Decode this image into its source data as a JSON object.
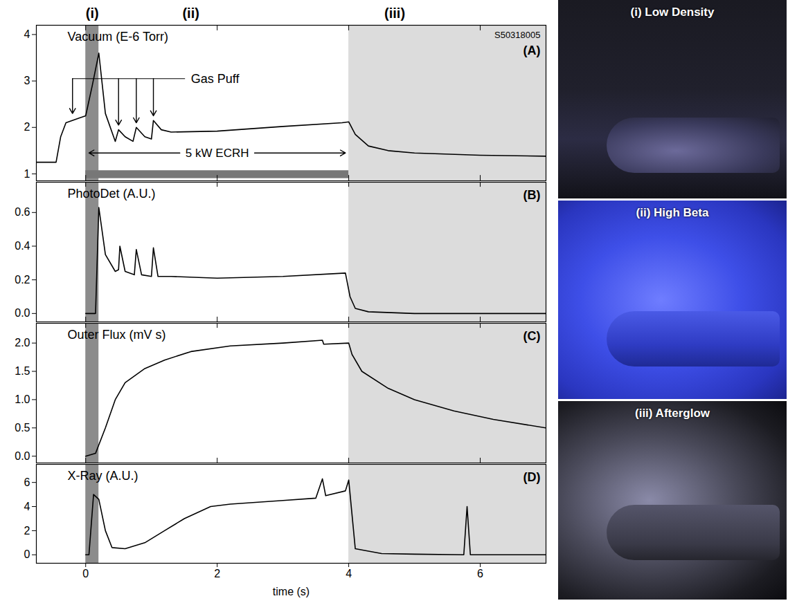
{
  "chart_data": [
    {
      "type": "line",
      "title": "Vacuum (E-6 Torr)",
      "panel_label": "(A)",
      "sample_id": "S50318005",
      "color": "#000000",
      "xlim": [
        -0.75,
        7
      ],
      "xticks": [
        0,
        2,
        4,
        6
      ],
      "ylim": [
        0.85,
        4.2
      ],
      "yticks": [
        1,
        2,
        3,
        4
      ],
      "tick_labels": "y",
      "x": [
        -0.75,
        -0.45,
        -0.38,
        -0.3,
        -0.1,
        0.0,
        0.1,
        0.2,
        0.3,
        0.45,
        0.5,
        0.6,
        0.72,
        0.77,
        0.9,
        1.0,
        1.03,
        1.15,
        1.3,
        2.0,
        3.0,
        3.9,
        4.0,
        4.1,
        4.3,
        4.6,
        5.0,
        6.0,
        7.0
      ],
      "values": [
        1.25,
        1.25,
        1.8,
        2.1,
        2.2,
        2.25,
        2.9,
        3.6,
        2.3,
        1.7,
        1.95,
        1.8,
        1.7,
        2.0,
        1.8,
        1.75,
        2.15,
        1.95,
        1.9,
        1.92,
        2.02,
        2.1,
        2.12,
        1.85,
        1.6,
        1.5,
        1.45,
        1.4,
        1.38
      ],
      "regions": [
        {
          "x1": 0,
          "x2": 0.2,
          "color": "#8c8c8c"
        },
        {
          "x1": 4,
          "x2": 7,
          "color": "#dcdcdc"
        }
      ],
      "phase_labels": [
        {
          "label": "(i)",
          "x": 0.1
        },
        {
          "label": "(ii)",
          "x": 1.6
        },
        {
          "label": "(iii)",
          "x": 4.7
        }
      ],
      "gas_puff": {
        "label": "Gas Puff",
        "y": 3.05,
        "label_x": 1.6,
        "arrows": [
          {
            "x": -0.2,
            "y": 2.3
          },
          {
            "x": 0.5,
            "y": 2.05
          },
          {
            "x": 0.77,
            "y": 2.1
          },
          {
            "x": 1.03,
            "y": 2.25
          }
        ]
      },
      "ecrh": {
        "label": "5 kW ECRH",
        "x1": 0.05,
        "x2": 3.95,
        "y": 1.45,
        "bar": {
          "x1": 0,
          "x2": 4,
          "y1": 0.9,
          "y2": 1.07,
          "color": "#777777"
        }
      }
    },
    {
      "type": "line",
      "title": "PhotoDet (A.U.)",
      "panel_label": "(B)",
      "color": "#000000",
      "xlim": [
        -0.75,
        7
      ],
      "xticks": [
        0,
        2,
        4,
        6
      ],
      "ylim": [
        -0.05,
        0.78
      ],
      "yticks": [
        {
          "value": 0,
          "label": "0.0"
        },
        0.2,
        0.4,
        0.6
      ],
      "tick_labels": "y",
      "x": [
        0.0,
        0.15,
        0.2,
        0.3,
        0.45,
        0.5,
        0.52,
        0.6,
        0.74,
        0.77,
        0.85,
        1.0,
        1.03,
        1.1,
        1.3,
        2.0,
        3.0,
        3.95,
        4.02,
        4.1,
        4.3,
        5.0,
        7.0
      ],
      "values": [
        0,
        0,
        0.63,
        0.35,
        0.25,
        0.26,
        0.4,
        0.25,
        0.23,
        0.38,
        0.23,
        0.22,
        0.39,
        0.22,
        0.22,
        0.21,
        0.22,
        0.24,
        0.1,
        0.03,
        0.01,
        0,
        0
      ],
      "regions": [
        {
          "x1": 0,
          "x2": 0.2,
          "color": "#8c8c8c"
        },
        {
          "x1": 4,
          "x2": 7,
          "color": "#dcdcdc"
        }
      ]
    },
    {
      "type": "line",
      "title": "Outer Flux (mV s)",
      "panel_label": "(C)",
      "color": "#000000",
      "xlim": [
        -0.75,
        7
      ],
      "xticks": [
        0,
        2,
        4,
        6
      ],
      "ylim": [
        -0.12,
        2.35
      ],
      "yticks": [
        {
          "value": 0,
          "label": "0.0"
        },
        0.5,
        {
          "value": 1,
          "label": "1.0"
        },
        1.5,
        {
          "value": 2,
          "label": "2.0"
        }
      ],
      "tick_labels": "y",
      "x": [
        0.0,
        0.15,
        0.3,
        0.45,
        0.6,
        0.9,
        1.2,
        1.6,
        2.2,
        3.0,
        3.6,
        3.62,
        4.0,
        4.05,
        4.2,
        4.6,
        5.0,
        5.6,
        6.2,
        7.0
      ],
      "values": [
        0,
        0.05,
        0.5,
        1.0,
        1.3,
        1.55,
        1.7,
        1.85,
        1.95,
        2.0,
        2.05,
        1.98,
        2.0,
        1.8,
        1.5,
        1.2,
        1.0,
        0.8,
        0.65,
        0.5
      ],
      "regions": [
        {
          "x1": 0,
          "x2": 0.2,
          "color": "#8c8c8c"
        },
        {
          "x1": 4,
          "x2": 7,
          "color": "#dcdcdc"
        }
      ]
    },
    {
      "type": "line",
      "title": "X-Ray (A.U.)",
      "panel_label": "(D)",
      "color": "#000000",
      "xlabel": "time (s)",
      "xlim": [
        -0.75,
        7
      ],
      "xticks": [
        0,
        2,
        4,
        6
      ],
      "ylim": [
        -0.7,
        7.5
      ],
      "yticks": [
        0,
        2,
        4,
        6
      ],
      "x": [
        0.0,
        0.05,
        0.12,
        0.2,
        0.3,
        0.4,
        0.6,
        0.9,
        1.2,
        1.5,
        1.9,
        2.2,
        3.0,
        3.5,
        3.6,
        3.65,
        3.95,
        4.0,
        4.1,
        4.5,
        5.0,
        5.75,
        5.8,
        5.85,
        7.0
      ],
      "values": [
        0,
        0,
        5,
        4.6,
        2,
        0.6,
        0.5,
        1.0,
        2.0,
        3.0,
        4.0,
        4.2,
        4.5,
        4.7,
        6.3,
        4.9,
        5.3,
        6.2,
        0.5,
        0.1,
        0.05,
        0,
        4,
        0,
        0
      ],
      "regions": [
        {
          "x1": 0,
          "x2": 0.2,
          "color": "#8c8c8c"
        },
        {
          "x1": 4,
          "x2": 7,
          "color": "#dcdcdc"
        }
      ]
    }
  ],
  "images": [
    {
      "label": "(i) Low Density"
    },
    {
      "label": "(ii) High Beta"
    },
    {
      "label": "(iii) Afterglow"
    }
  ]
}
